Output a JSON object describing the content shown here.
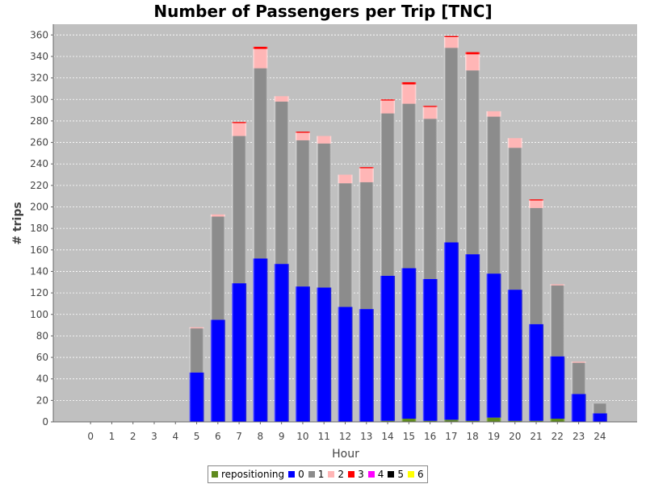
{
  "chart_data": {
    "type": "bar",
    "stacked": true,
    "title": "Number of Passengers per Trip [TNC]",
    "xlabel": "Hour",
    "ylabel": "# trips",
    "ylim": [
      0,
      370
    ],
    "ytick_step": 20,
    "grid": true,
    "legend_position": "bottom",
    "categories": [
      "0",
      "1",
      "2",
      "3",
      "4",
      "5",
      "6",
      "7",
      "8",
      "9",
      "10",
      "11",
      "12",
      "13",
      "14",
      "15",
      "16",
      "17",
      "18",
      "19",
      "20",
      "21",
      "22",
      "23",
      "24"
    ],
    "series": [
      {
        "name": "repositioning",
        "color": "#5f8a1e",
        "values": [
          0,
          0,
          0,
          0,
          0,
          0,
          0,
          0,
          0,
          0,
          0,
          0,
          0,
          0,
          1,
          3,
          1,
          2,
          1,
          4,
          1,
          1,
          3,
          0,
          0
        ]
      },
      {
        "name": "0",
        "color": "#0000ff",
        "values": [
          0,
          0,
          0,
          0,
          0,
          46,
          95,
          129,
          152,
          147,
          126,
          125,
          107,
          105,
          135,
          140,
          132,
          165,
          155,
          134,
          122,
          90,
          58,
          26,
          8
        ]
      },
      {
        "name": "1",
        "color": "#8c8c8c",
        "values": [
          0,
          0,
          0,
          0,
          0,
          41,
          96,
          137,
          177,
          151,
          136,
          134,
          115,
          118,
          151,
          153,
          149,
          181,
          171,
          146,
          132,
          108,
          66,
          29,
          9
        ]
      },
      {
        "name": "2",
        "color": "#ffb6b6",
        "values": [
          0,
          0,
          0,
          0,
          0,
          1,
          2,
          12,
          18,
          5,
          7,
          7,
          8,
          13,
          12,
          18,
          11,
          10,
          15,
          5,
          9,
          7,
          1,
          1,
          0
        ]
      },
      {
        "name": "3",
        "color": "#ff0000",
        "values": [
          0,
          0,
          0,
          0,
          0,
          0,
          0,
          1,
          2,
          0,
          1,
          0,
          0,
          1,
          1,
          2,
          1,
          1,
          2,
          0,
          0,
          1,
          0,
          0,
          0
        ]
      },
      {
        "name": "4",
        "color": "#ff00ff",
        "values": [
          0,
          0,
          0,
          0,
          0,
          0,
          0,
          0,
          0,
          0,
          0,
          0,
          0,
          0,
          0,
          0,
          0,
          0,
          0,
          0,
          0,
          0,
          0,
          0,
          0
        ]
      },
      {
        "name": "5",
        "color": "#000000",
        "values": [
          0,
          0,
          0,
          0,
          0,
          0,
          0,
          0,
          0,
          0,
          0,
          0,
          0,
          0,
          0,
          0,
          0,
          0,
          0,
          0,
          0,
          0,
          0,
          0,
          0
        ]
      },
      {
        "name": "6",
        "color": "#ffff00",
        "values": [
          0,
          0,
          0,
          0,
          0,
          0,
          0,
          0,
          0,
          0,
          0,
          0,
          0,
          0,
          0,
          0,
          0,
          0,
          0,
          0,
          0,
          0,
          0,
          0,
          0
        ]
      }
    ]
  }
}
